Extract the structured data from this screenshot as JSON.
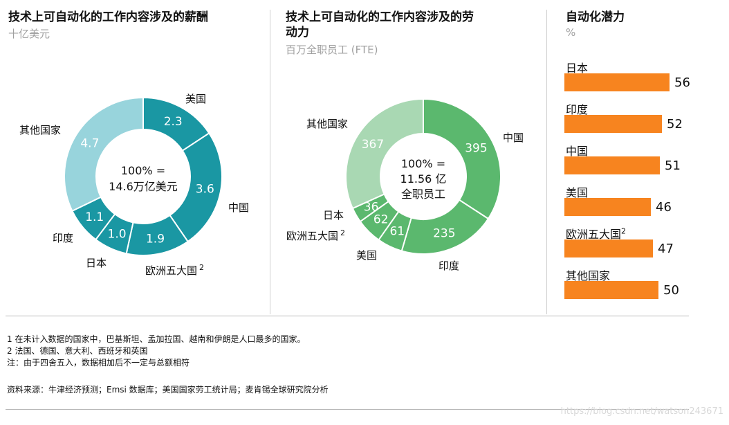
{
  "chart_data": [
    {
      "type": "pie",
      "title": "技术上可自动化的工作内容涉及的薪酬",
      "subtitle": "十亿美元",
      "center_line1": "100% =",
      "center_line2": "14.6万亿美元",
      "slices": [
        {
          "label": "美国",
          "value": 2.3,
          "display": "2.3",
          "color": "#1a97a3"
        },
        {
          "label": "中国",
          "value": 3.6,
          "display": "3.6",
          "color": "#1a97a3"
        },
        {
          "label": "欧洲五大国",
          "sup": "2",
          "value": 1.9,
          "display": "1.9",
          "color": "#1a97a3"
        },
        {
          "label": "日本",
          "value": 1.0,
          "display": "1.0",
          "color": "#1a97a3"
        },
        {
          "label": "印度",
          "value": 1.1,
          "display": "1.1",
          "color": "#1a97a3"
        },
        {
          "label": "其他国家",
          "value": 4.7,
          "display": "4.7",
          "color": "#98d4dc"
        }
      ]
    },
    {
      "type": "pie",
      "title_line1": "技术上可自动化的工作内容涉及的劳",
      "title_line2": "动力",
      "subtitle": "百万全职员工 (FTE)",
      "center_line1": "100% =",
      "center_line2": "11.56 亿",
      "center_line3": "全职员工",
      "slices": [
        {
          "label": "中国",
          "value": 395,
          "display": "395",
          "color": "#5bb86e"
        },
        {
          "label": "印度",
          "value": 235,
          "display": "235",
          "color": "#5bb86e"
        },
        {
          "label": "美国",
          "value": 61,
          "display": "61",
          "color": "#5bb86e"
        },
        {
          "label": "欧洲五大国",
          "sup": "2",
          "value": 62,
          "display": "62",
          "color": "#5bb86e"
        },
        {
          "label": "日本",
          "value": 36,
          "display": "36",
          "color": "#5bb86e"
        },
        {
          "label": "其他国家",
          "value": 367,
          "display": "367",
          "color": "#a9d8b3"
        }
      ]
    },
    {
      "type": "bar",
      "title": "自动化潜力",
      "subtitle": "%",
      "categories": [
        "日本",
        "印度",
        "中国",
        "美国",
        "欧洲五大国",
        "其他国家"
      ],
      "category_sup": [
        "",
        "",
        "",
        "",
        "2",
        ""
      ],
      "values": [
        56,
        52,
        51,
        46,
        47,
        50
      ],
      "color": "#f7841f"
    }
  ],
  "footnotes": {
    "note1": "1 在未计入数据的国家中，巴基斯坦、孟加拉国、越南和伊朗是人口最多的国家。",
    "note2": "2 法国、德国、意大利、西班牙和英国",
    "note3": "注：由于四舍五入，数据相加后不一定与总额相符",
    "source": "资料来源：牛津经济预测；Emsi 数据库；美国国家劳工统计局；麦肯锡全球研究院分析"
  },
  "watermark": "https://blog.csdn.net/watson243671"
}
